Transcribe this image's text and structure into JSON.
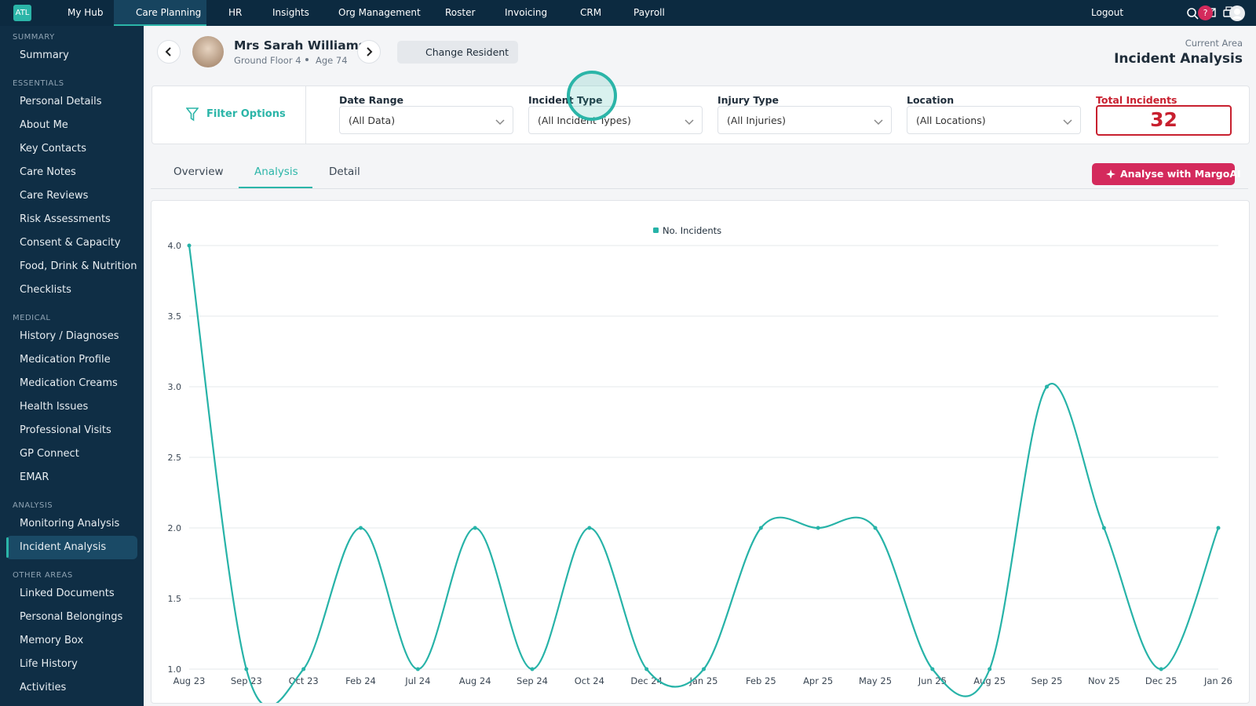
{
  "nav": {
    "logo": "ATL",
    "items": [
      "My Hub",
      "Care Planning",
      "HR",
      "Insights",
      "Org Management",
      "Roster",
      "Invoicing",
      "CRM",
      "Payroll"
    ],
    "logout": "Logout",
    "help": "?"
  },
  "sidebar": [
    {
      "title": "SUMMARY",
      "items": [
        "Summary"
      ]
    },
    {
      "title": "ESSENTIALS",
      "items": [
        "Personal Details",
        "About Me",
        "Key Contacts",
        "Care Notes",
        "Care Reviews",
        "Risk Assessments",
        "Consent & Capacity",
        "Food, Drink & Nutrition",
        "Checklists"
      ]
    },
    {
      "title": "MEDICAL",
      "items": [
        "History / Diagnoses",
        "Medication Profile",
        "Medication Creams",
        "Health Issues",
        "Professional Visits",
        "GP Connect",
        "EMAR"
      ]
    },
    {
      "title": "ANALYSIS",
      "items": [
        "Monitoring Analysis",
        "Incident Analysis"
      ]
    },
    {
      "title": "OTHER AREAS",
      "items": [
        "Linked Documents",
        "Personal Belongings",
        "Memory Box",
        "Life History",
        "Activities"
      ]
    }
  ],
  "header": {
    "name": "Mrs Sarah Williams",
    "location": "Ground Floor 4",
    "age": "Age 74",
    "change_button": "Change Resident",
    "current_area_label": "Current Area",
    "current_area": "Incident Analysis"
  },
  "filters": {
    "title": "Filter Options",
    "fields": [
      {
        "label": "Date Range",
        "value": "(All Data)"
      },
      {
        "label": "Incident Type",
        "value": "(All Incident Types)"
      },
      {
        "label": "Injury Type",
        "value": "(All Injuries)"
      },
      {
        "label": "Location",
        "value": "(All Locations)"
      }
    ],
    "total_label": "Total Incidents",
    "total": 32
  },
  "tabs": [
    "Overview",
    "Analysis",
    "Detail"
  ],
  "ai_button": "Analyse with MargoAI",
  "chart_data": {
    "type": "line",
    "categories": [
      "Aug 23",
      "Sep 23",
      "Oct 23",
      "Feb 24",
      "Jul 24",
      "Aug 24",
      "Sep 24",
      "Oct 24",
      "Dec 24",
      "Jan 25",
      "Feb 25",
      "Apr 25",
      "May 25",
      "Jun 25",
      "Aug 25",
      "Sep 25",
      "Nov 25",
      "Dec 25",
      "Jan 26"
    ],
    "series": [
      {
        "name": "No. Incidents",
        "color": "#27b3a8",
        "values": [
          4,
          1,
          1,
          2,
          1,
          2,
          1,
          2,
          1,
          1,
          2,
          2,
          2,
          1,
          1,
          3,
          2,
          1,
          2
        ]
      }
    ],
    "ylim": [
      1,
      4
    ],
    "yticks": [
      {
        "value": 1,
        "label": "1.0"
      },
      1.5,
      {
        "value": 2,
        "label": "2.0"
      },
      2.5,
      {
        "value": 3,
        "label": "3.0"
      },
      3.5,
      {
        "value": 4,
        "label": "4.0"
      }
    ],
    "grid": true,
    "legend": "top"
  }
}
